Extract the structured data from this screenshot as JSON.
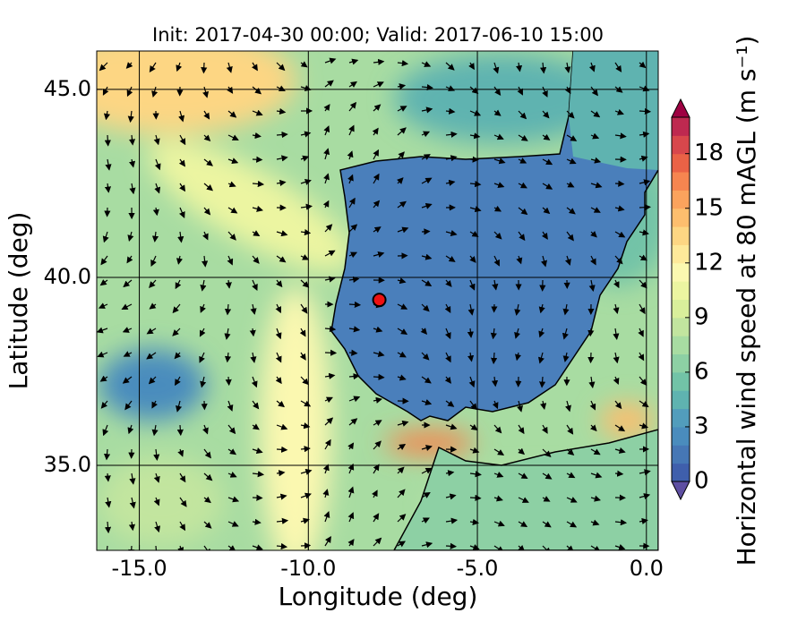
{
  "chart_data": {
    "type": "map",
    "title": "Init: 2017-04-30 00:00; Valid: 2017-06-10 15:00",
    "x_label": "Longitude (deg)",
    "y_label": "Latitude (deg)",
    "xlim": [
      -16.26,
      0.35
    ],
    "ylim": [
      32.74,
      46.02
    ],
    "xticks": [
      {
        "value": -15,
        "label": "-15.0"
      },
      {
        "value": -10,
        "label": "-10.0"
      },
      {
        "value": -5,
        "label": "-5.0"
      },
      {
        "value": 0,
        "label": "0.0"
      }
    ],
    "yticks": [
      {
        "value": 35,
        "label": "35.0"
      },
      {
        "value": 40,
        "label": "40.0"
      },
      {
        "value": 45,
        "label": "45.0"
      }
    ],
    "grid": true,
    "marker": {
      "lon": -7.9,
      "lat": 39.4,
      "color": "#ee1111"
    },
    "colorbar": {
      "label": "Horizontal wind speed at 80 mAGL (m s⁻¹)",
      "lim": [
        0,
        20
      ],
      "ticks": [
        0,
        3,
        6,
        9,
        12,
        15,
        18
      ],
      "colors": [
        "#3f5fac",
        "#4677b5",
        "#4a8cbd",
        "#529dbc",
        "#5fb3b0",
        "#72c3a7",
        "#8dd0a4",
        "#a8dca2",
        "#c2e59f",
        "#d9ef9b",
        "#ecf5a1",
        "#fbf8b0",
        "#fee99a",
        "#fdd683",
        "#fdbe6e",
        "#fba35d",
        "#f68550",
        "#ea6246",
        "#d8474c",
        "#be2950"
      ],
      "under_color": "#5e4fa2",
      "over_color": "#9e0142"
    }
  }
}
